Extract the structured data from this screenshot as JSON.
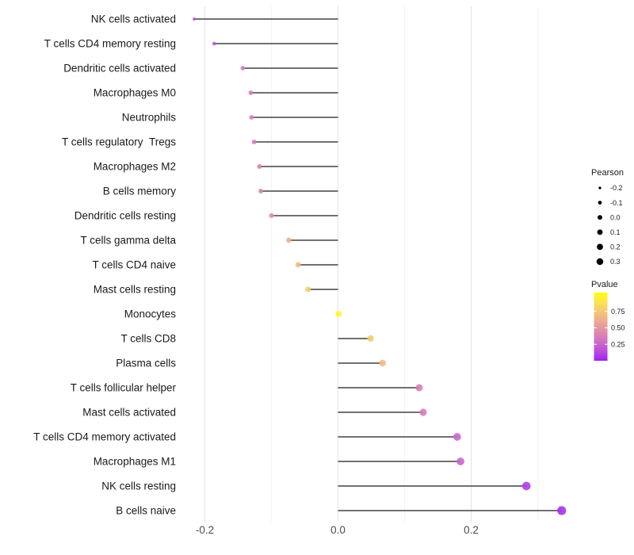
{
  "chart_data": {
    "type": "lollipop",
    "title": "",
    "xlabel": "",
    "ylabel": "",
    "x_axis": {
      "range": [
        -0.24,
        0.36
      ],
      "ticks_major": [
        -0.2,
        0.0,
        0.2
      ],
      "ticks_minor": [
        -0.1,
        0.1,
        0.3
      ],
      "tick_labels": [
        "-0.2",
        "0.0",
        "0.2"
      ],
      "grid": true
    },
    "rows": [
      {
        "label": "NK cells activated",
        "pearson": -0.216,
        "pvalue": 0.18
      },
      {
        "label": "T cells CD4 memory resting",
        "pearson": -0.186,
        "pvalue": 0.18
      },
      {
        "label": "Dendritic cells activated",
        "pearson": -0.143,
        "pvalue": 0.34
      },
      {
        "label": "Macrophages M0",
        "pearson": -0.131,
        "pvalue": 0.35
      },
      {
        "label": "Neutrophils",
        "pearson": -0.13,
        "pvalue": 0.35
      },
      {
        "label": "T cells regulatory  Tregs",
        "pearson": -0.126,
        "pvalue": 0.35
      },
      {
        "label": "Macrophages M2",
        "pearson": -0.118,
        "pvalue": 0.38
      },
      {
        "label": "B cells memory",
        "pearson": -0.116,
        "pvalue": 0.38
      },
      {
        "label": "Dendritic cells resting",
        "pearson": -0.1,
        "pvalue": 0.45
      },
      {
        "label": "T cells gamma delta",
        "pearson": -0.074,
        "pvalue": 0.61
      },
      {
        "label": "T cells CD4 naive",
        "pearson": -0.06,
        "pvalue": 0.65
      },
      {
        "label": "Mast cells resting",
        "pearson": -0.045,
        "pvalue": 0.73
      },
      {
        "label": "Monocytes",
        "pearson": 0.001,
        "pvalue": 0.95
      },
      {
        "label": "T cells CD8",
        "pearson": 0.049,
        "pvalue": 0.72
      },
      {
        "label": "Plasma cells",
        "pearson": 0.067,
        "pvalue": 0.64
      },
      {
        "label": "T cells follicular helper",
        "pearson": 0.122,
        "pvalue": 0.36
      },
      {
        "label": "Mast cells activated",
        "pearson": 0.128,
        "pvalue": 0.36
      },
      {
        "label": "T cells CD4 memory activated",
        "pearson": 0.179,
        "pvalue": 0.25
      },
      {
        "label": "Macrophages M1",
        "pearson": 0.184,
        "pvalue": 0.25
      },
      {
        "label": "NK cells resting",
        "pearson": 0.283,
        "pvalue": 0.1
      },
      {
        "label": "B cells naive",
        "pearson": 0.336,
        "pvalue": 0.06
      }
    ],
    "size_legend": {
      "title": "Pearson",
      "values": [
        -0.2,
        -0.1,
        0.0,
        0.1,
        0.2,
        0.3
      ],
      "labels": [
        "-0.2",
        "-0.1",
        "0.0",
        "0.1",
        "0.2",
        "0.3"
      ],
      "dot_color": "#000000"
    },
    "color_legend": {
      "title": "Pvalue",
      "ticks": [
        0.75,
        0.5,
        0.25
      ],
      "tick_labels": [
        "0.75",
        "0.50",
        "0.25"
      ],
      "low_color": "#A020F0",
      "high_color": "#FFFF00",
      "legend_position": "right"
    },
    "colors": {
      "stem": "#424242",
      "grid_major": "#e4e4e4",
      "grid_minor": "#f1f1f1",
      "axis_text": "#4d4d4d",
      "category_text": "#1a1a1a",
      "background": "#ffffff"
    }
  }
}
